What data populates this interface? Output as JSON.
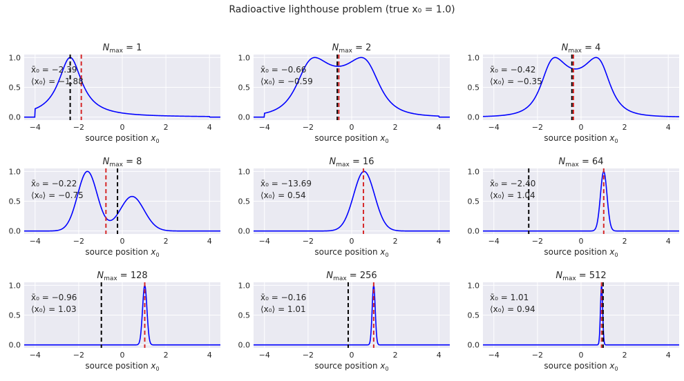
{
  "figure": {
    "title": "Radioactive lighthouse problem (true x₀ = 1.0)"
  },
  "colors": {
    "background": "#eaeaf2",
    "grid": "#ffffff",
    "posterior": "#0000ff",
    "sample_mean_line": "#000000",
    "posterior_mean_line": "#d62728"
  },
  "chart_data": [
    {
      "type": "line",
      "title": "N_max = 1",
      "title_sub": "max",
      "title_value": "1",
      "xlabel": "source position x₀",
      "xlim": [
        -4.5,
        4.5
      ],
      "ylim": [
        -0.05,
        1.05
      ],
      "xticks": [
        -4,
        -2,
        0,
        2,
        4
      ],
      "xtick_labels": [
        "−4",
        "−2",
        "0",
        "2",
        "4"
      ],
      "yticks": [
        0.0,
        0.5,
        1.0
      ],
      "ytick_labels": [
        "0.0",
        "0.5",
        "1.0"
      ],
      "legend": [],
      "grid": true,
      "curve": {
        "kind": "cauchy_mix",
        "centers": [
          -2.39
        ],
        "gamma": 0.65,
        "support": [
          -4.0,
          4.0
        ]
      },
      "sample_mean": -2.39,
      "posterior_mean": -1.88,
      "annotation_sample_mean": "x̄₀ = −2.39",
      "annotation_posterior_mean": "⟨x₀⟩ = −1.88"
    },
    {
      "type": "line",
      "title": "N_max = 2",
      "title_sub": "max",
      "title_value": "2",
      "xlabel": "source position x₀",
      "xlim": [
        -4.5,
        4.5
      ],
      "ylim": [
        -0.05,
        1.05
      ],
      "xticks": [
        -4,
        -2,
        0,
        2,
        4
      ],
      "xtick_labels": [
        "−4",
        "−2",
        "0",
        "2",
        "4"
      ],
      "yticks": [
        0.0,
        0.5,
        1.0
      ],
      "ytick_labels": [
        "0.0",
        "0.5",
        "1.0"
      ],
      "legend": [],
      "grid": true,
      "curve": {
        "kind": "cauchy_mix",
        "centers": [
          -2.05,
          0.8
        ],
        "gamma": 0.95,
        "support": [
          -4.0,
          4.0
        ]
      },
      "sample_mean": -0.66,
      "posterior_mean": -0.59,
      "annotation_sample_mean": "x̄₀ = −0.66",
      "annotation_posterior_mean": "⟨x₀⟩ = −0.59"
    },
    {
      "type": "line",
      "title": "N_max = 4",
      "title_sub": "max",
      "title_value": "4",
      "xlabel": "source position x₀",
      "xlim": [
        -4.5,
        4.5
      ],
      "ylim": [
        -0.05,
        1.05
      ],
      "xticks": [
        -4,
        -2,
        0,
        2,
        4
      ],
      "xtick_labels": [
        "−4",
        "−2",
        "0",
        "2",
        "4"
      ],
      "yticks": [
        0.0,
        0.5,
        1.0
      ],
      "ytick_labels": [
        "0.0",
        "0.5",
        "1.0"
      ],
      "legend": [],
      "grid": true,
      "curve": {
        "kind": "cauchy_mix",
        "centers": [
          -1.45,
          0.95
        ],
        "gamma": 0.75,
        "support": null
      },
      "sample_mean": -0.42,
      "posterior_mean": -0.35,
      "annotation_sample_mean": "x̄₀ = −0.42",
      "annotation_posterior_mean": "⟨x₀⟩ = −0.35"
    },
    {
      "type": "line",
      "title": "N_max = 8",
      "title_sub": "max",
      "title_value": "8",
      "xlabel": "source position x₀",
      "xlim": [
        -4.5,
        4.5
      ],
      "ylim": [
        -0.05,
        1.05
      ],
      "xticks": [
        -4,
        -2,
        0,
        2,
        4
      ],
      "xtick_labels": [
        "−4",
        "−2",
        "0",
        "2",
        "4"
      ],
      "yticks": [
        0.0,
        0.5,
        1.0
      ],
      "ytick_labels": [
        "0.0",
        "0.5",
        "1.0"
      ],
      "legend": [],
      "grid": true,
      "curve": {
        "kind": "gauss_mix",
        "components": [
          [
            -1.6,
            0.45,
            1.0
          ],
          [
            0.45,
            0.55,
            0.58
          ]
        ]
      },
      "sample_mean": -0.22,
      "posterior_mean": -0.75,
      "annotation_sample_mean": "x̄₀ = −0.22",
      "annotation_posterior_mean": "⟨x₀⟩ = −0.75"
    },
    {
      "type": "line",
      "title": "N_max = 16",
      "title_sub": "max",
      "title_value": "16",
      "xlabel": "source position x₀",
      "xlim": [
        -4.5,
        4.5
      ],
      "ylim": [
        -0.05,
        1.05
      ],
      "xticks": [
        -4,
        -2,
        0,
        2,
        4
      ],
      "xtick_labels": [
        "−4",
        "−2",
        "0",
        "2",
        "4"
      ],
      "yticks": [
        0.0,
        0.5,
        1.0
      ],
      "ytick_labels": [
        "0.0",
        "0.5",
        "1.0"
      ],
      "legend": [],
      "grid": true,
      "curve": {
        "kind": "gauss_mix",
        "components": [
          [
            0.57,
            0.48,
            1.0
          ]
        ]
      },
      "sample_mean": -13.69,
      "posterior_mean": 0.54,
      "annotation_sample_mean": "x̄₀ = −13.69",
      "annotation_posterior_mean": "⟨x₀⟩ = 0.54"
    },
    {
      "type": "line",
      "title": "N_max = 64",
      "title_sub": "max",
      "title_value": "64",
      "xlabel": "source position x₀",
      "xlim": [
        -4.5,
        4.5
      ],
      "ylim": [
        -0.05,
        1.05
      ],
      "xticks": [
        -4,
        -2,
        0,
        2,
        4
      ],
      "xtick_labels": [
        "−4",
        "−2",
        "0",
        "2",
        "4"
      ],
      "yticks": [
        0.0,
        0.5,
        1.0
      ],
      "ytick_labels": [
        "0.0",
        "0.5",
        "1.0"
      ],
      "legend": [],
      "grid": true,
      "curve": {
        "kind": "gauss_mix",
        "components": [
          [
            1.04,
            0.15,
            1.0
          ]
        ]
      },
      "sample_mean": -2.4,
      "posterior_mean": 1.04,
      "annotation_sample_mean": "x̄₀ = −2.40",
      "annotation_posterior_mean": "⟨x₀⟩ = 1.04"
    },
    {
      "type": "line",
      "title": "N_max = 128",
      "title_sub": "max",
      "title_value": "128",
      "xlabel": "source position x₀",
      "xlim": [
        -4.5,
        4.5
      ],
      "ylim": [
        -0.05,
        1.05
      ],
      "xticks": [
        -4,
        -2,
        0,
        2,
        4
      ],
      "xtick_labels": [
        "−4",
        "−2",
        "0",
        "2",
        "4"
      ],
      "yticks": [
        0.0,
        0.5,
        1.0
      ],
      "ytick_labels": [
        "0.0",
        "0.5",
        "1.0"
      ],
      "legend": [],
      "grid": true,
      "curve": {
        "kind": "gauss_mix",
        "components": [
          [
            1.03,
            0.1,
            1.0
          ]
        ]
      },
      "sample_mean": -0.96,
      "posterior_mean": 1.03,
      "annotation_sample_mean": "x̄₀ = −0.96",
      "annotation_posterior_mean": "⟨x₀⟩ = 1.03"
    },
    {
      "type": "line",
      "title": "N_max = 256",
      "title_sub": "max",
      "title_value": "256",
      "xlabel": "source position x₀",
      "xlim": [
        -4.5,
        4.5
      ],
      "ylim": [
        -0.05,
        1.05
      ],
      "xticks": [
        -4,
        -2,
        0,
        2,
        4
      ],
      "xtick_labels": [
        "−4",
        "−2",
        "0",
        "2",
        "4"
      ],
      "yticks": [
        0.0,
        0.5,
        1.0
      ],
      "ytick_labels": [
        "0.0",
        "0.5",
        "1.0"
      ],
      "legend": [],
      "grid": true,
      "curve": {
        "kind": "gauss_mix",
        "components": [
          [
            1.01,
            0.07,
            1.0
          ]
        ]
      },
      "sample_mean": -0.16,
      "posterior_mean": 1.01,
      "annotation_sample_mean": "x̄₀ = −0.16",
      "annotation_posterior_mean": "⟨x₀⟩ = 1.01"
    },
    {
      "type": "line",
      "title": "N_max = 512",
      "title_sub": "max",
      "title_value": "512",
      "xlabel": "source position x₀",
      "xlim": [
        -4.5,
        4.5
      ],
      "ylim": [
        -0.05,
        1.05
      ],
      "xticks": [
        -4,
        -2,
        0,
        2,
        4
      ],
      "xtick_labels": [
        "−4",
        "−2",
        "0",
        "2",
        "4"
      ],
      "yticks": [
        0.0,
        0.5,
        1.0
      ],
      "ytick_labels": [
        "0.0",
        "0.5",
        "1.0"
      ],
      "legend": [],
      "grid": true,
      "curve": {
        "kind": "gauss_mix",
        "components": [
          [
            0.94,
            0.05,
            1.0
          ]
        ]
      },
      "sample_mean": 1.01,
      "posterior_mean": 0.94,
      "annotation_sample_mean": "x̄₀ = 1.01",
      "annotation_posterior_mean": "⟨x₀⟩ = 0.94"
    }
  ]
}
